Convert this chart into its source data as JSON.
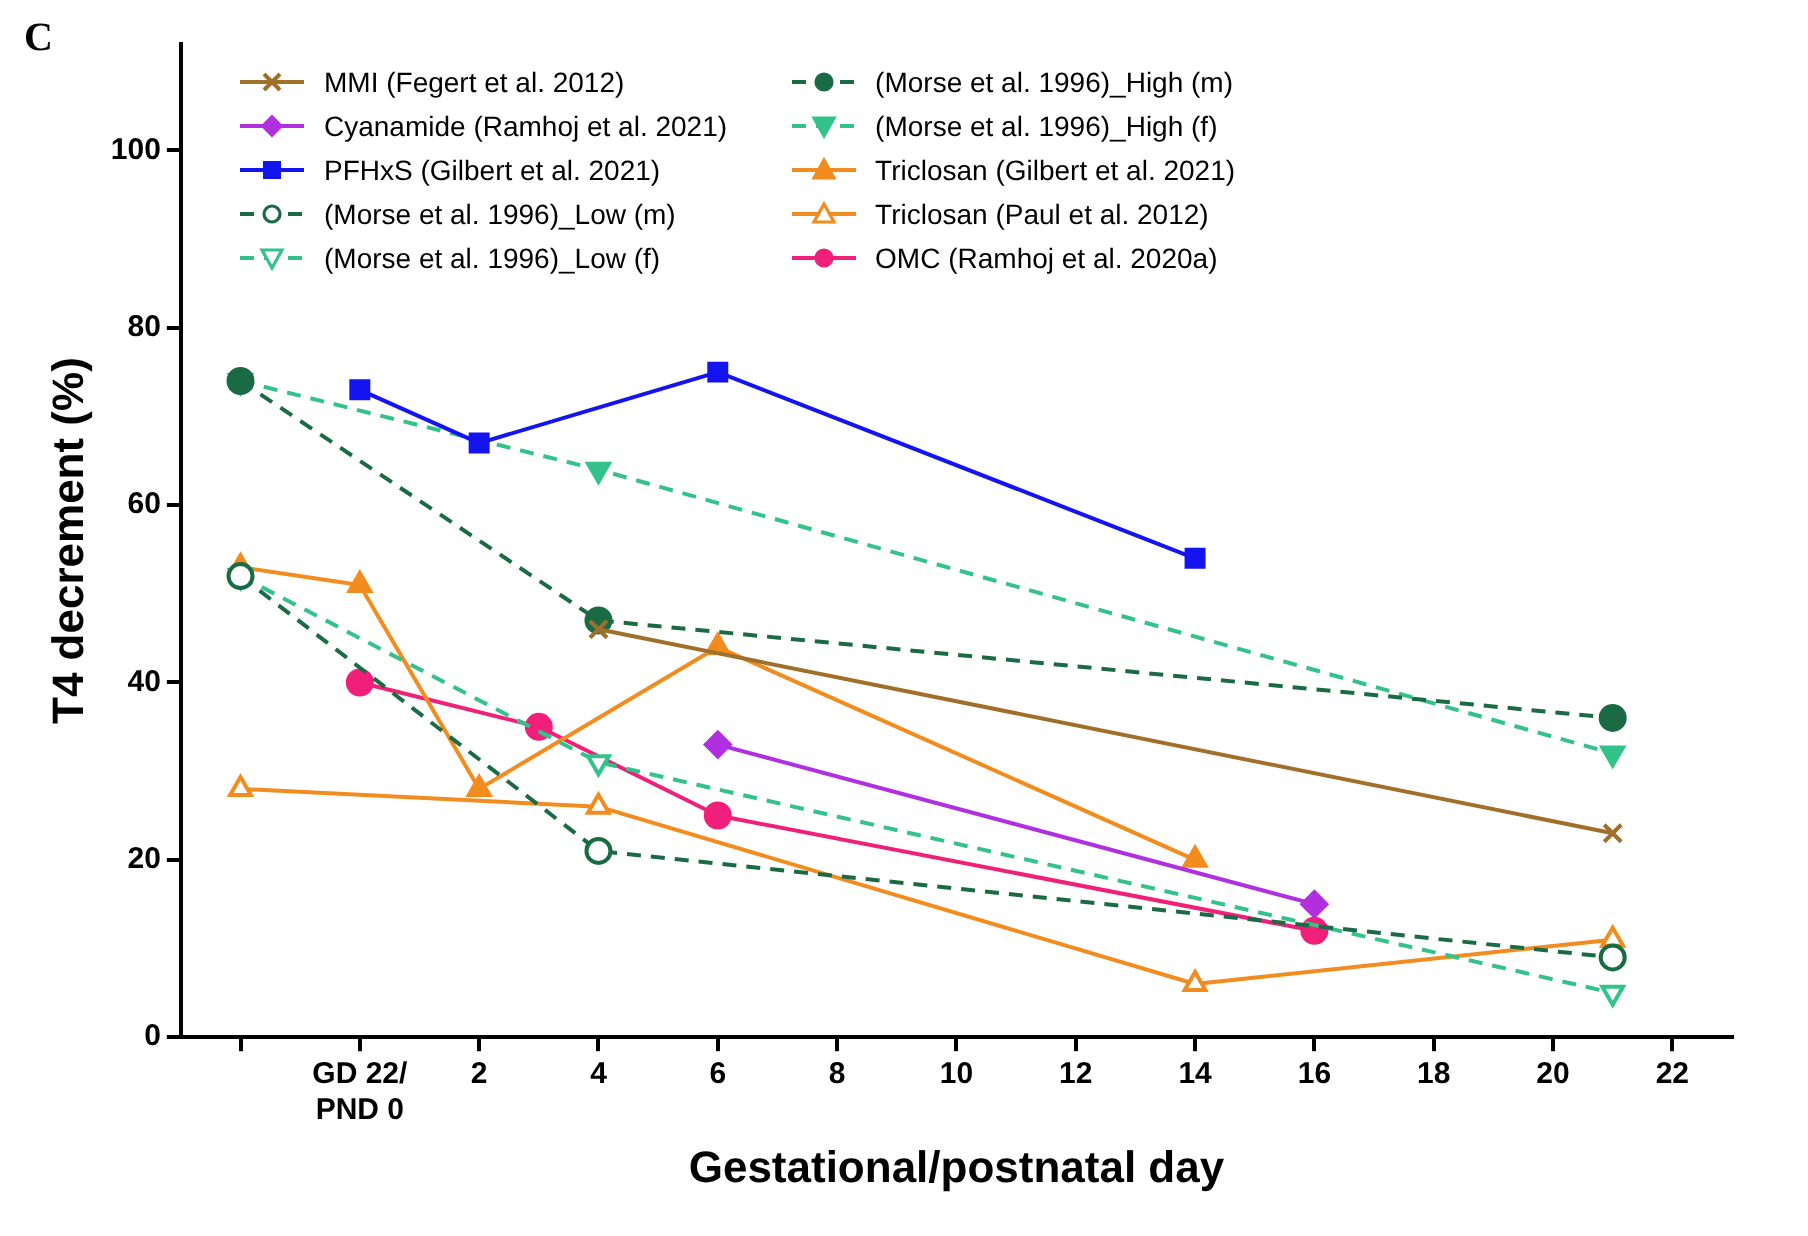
{
  "chart_data": {
    "type": "line",
    "title": "C",
    "xlabel": "Gestational/postnatal day",
    "ylabel": "T4 decrement (%)",
    "xlim": [
      -3,
      23
    ],
    "xticks": [
      {
        "value": -2,
        "label": null
      },
      {
        "value": 0,
        "label": "GD 22/\nPND 0"
      },
      2,
      4,
      6,
      8,
      10,
      12,
      14,
      16,
      18,
      20,
      22
    ],
    "ylim": [
      0,
      112
    ],
    "yticks": [
      0,
      20,
      40,
      60,
      80,
      100
    ],
    "grid": false,
    "legend": "top",
    "series": [
      {
        "name": "MMI (Fegert et al. 2012)",
        "color": "#a0702a",
        "marker": "cross",
        "line_style": "solid",
        "x": [
          4,
          21
        ],
        "values": [
          46,
          23
        ]
      },
      {
        "name": "Cyanamide (Ramhoj et al. 2021)",
        "color": "#b030e0",
        "marker": "diamond",
        "line_style": "solid",
        "x": [
          6,
          16
        ],
        "values": [
          33,
          15
        ]
      },
      {
        "name": "PFHxS (Gilbert et al. 2021)",
        "color": "#1414f0",
        "marker": "square",
        "line_style": "solid",
        "x": [
          0,
          2,
          6,
          14
        ],
        "values": [
          73,
          67,
          75,
          54
        ]
      },
      {
        "name": "(Morse et al. 1996)_Low (m)",
        "color": "#1a6b45",
        "marker": "circle",
        "line_style": "dashed",
        "x": [
          -2,
          4,
          21
        ],
        "values": [
          52,
          21,
          9
        ]
      },
      {
        "name": "(Morse et al. 1996)_Low (f)",
        "color": "#33c28a",
        "marker": "triangle",
        "line_style": "dashed",
        "x": [
          -2,
          4,
          21
        ],
        "values": [
          52,
          31,
          5
        ]
      },
      {
        "name": "(Morse et al. 1996)_High (m)",
        "color": "#1a6b45",
        "marker": "circle",
        "line_style": "dashed",
        "x": [
          -2,
          4,
          21
        ],
        "values": [
          74,
          47,
          36
        ]
      },
      {
        "name": "(Morse et al. 1996)_High (f)",
        "color": "#33c28a",
        "marker": "triangle",
        "line_style": "dashed",
        "x": [
          -2,
          4,
          21
        ],
        "values": [
          74,
          64,
          32
        ]
      },
      {
        "name": "Triclosan (Gilbert et al. 2021)",
        "color": "#f28c1e",
        "marker": "triangle",
        "line_style": "solid",
        "x": [
          -2,
          0,
          2,
          6,
          14
        ],
        "values": [
          53,
          51,
          28,
          44,
          20
        ]
      },
      {
        "name": "Triclosan (Paul et al. 2012)",
        "color": "#f28c1e",
        "marker": "triangle",
        "line_style": "solid",
        "x": [
          -2,
          4,
          14,
          21
        ],
        "values": [
          28,
          26,
          6,
          11
        ]
      },
      {
        "name": "OMC (Ramhoj et al. 2020a)",
        "color": "#f0207a",
        "marker": "circle",
        "line_style": "solid",
        "x": [
          0,
          3,
          6,
          16
        ],
        "values": [
          40,
          35,
          25,
          12
        ]
      }
    ]
  }
}
